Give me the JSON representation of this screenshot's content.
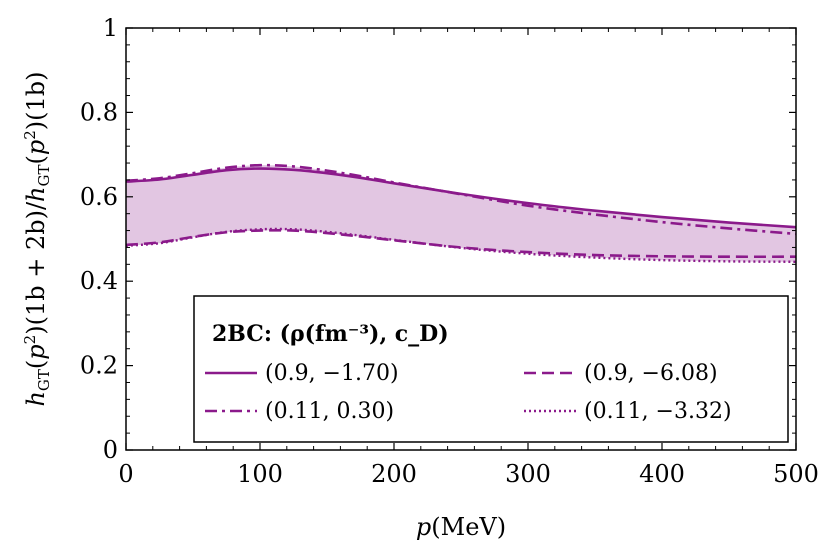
{
  "chart_data": {
    "type": "line",
    "xlabel": "p(MeV)",
    "ylabel": "h_GT(p²)(1b + 2b)/h_GT(p²)(1b)",
    "xlim": [
      0,
      500
    ],
    "ylim": [
      0,
      1
    ],
    "x_ticks": [
      "0",
      "100",
      "200",
      "300",
      "400",
      "500"
    ],
    "y_ticks": [
      "0",
      "0.2",
      "0.4",
      "0.6",
      "0.8",
      "1"
    ],
    "grid": false,
    "band_color": "#e2c6e2",
    "line_color": "#8b1a8b",
    "legend": {
      "placement": "bottom-center",
      "title": "2BC: (ρ(fm⁻³), c_D)"
    },
    "x": [
      0,
      25,
      50,
      75,
      100,
      125,
      150,
      175,
      200,
      250,
      300,
      350,
      400,
      450,
      500
    ],
    "series": [
      {
        "name": "(0.9, −1.70)",
        "style": "solid",
        "values": [
          0.636,
          0.641,
          0.652,
          0.663,
          0.667,
          0.664,
          0.656,
          0.645,
          0.632,
          0.607,
          0.585,
          0.567,
          0.552,
          0.539,
          0.528
        ]
      },
      {
        "name": "(0.9, −6.08)",
        "style": "dashed",
        "values": [
          0.486,
          0.492,
          0.505,
          0.516,
          0.52,
          0.52,
          0.514,
          0.506,
          0.497,
          0.48,
          0.469,
          0.462,
          0.459,
          0.458,
          0.458
        ]
      },
      {
        "name": "(0.11, 0.30)",
        "style": "dashdot",
        "values": [
          0.638,
          0.644,
          0.656,
          0.669,
          0.675,
          0.672,
          0.662,
          0.649,
          0.634,
          0.606,
          0.579,
          0.558,
          0.54,
          0.525,
          0.512
        ]
      },
      {
        "name": "(0.11, −3.32)",
        "style": "dotted",
        "values": [
          0.484,
          0.49,
          0.504,
          0.517,
          0.523,
          0.523,
          0.517,
          0.508,
          0.498,
          0.479,
          0.465,
          0.456,
          0.45,
          0.447,
          0.446
        ]
      }
    ]
  }
}
